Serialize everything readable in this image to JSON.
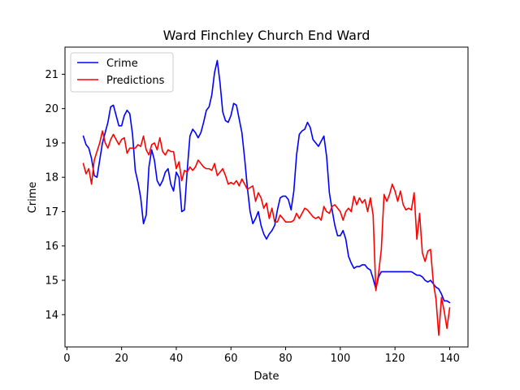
{
  "chart_data": {
    "type": "line",
    "title": "Ward Finchley Church End Ward",
    "xlabel": "Date",
    "ylabel": "Crime",
    "xlim": [
      -0.7,
      146.7
    ],
    "ylim": [
      13.06,
      21.79
    ],
    "xticks": [
      0,
      20,
      40,
      60,
      80,
      100,
      120,
      140
    ],
    "yticks": [
      14,
      15,
      16,
      17,
      18,
      19,
      20,
      21
    ],
    "grid": false,
    "legend": "top-left",
    "series": [
      {
        "name": "Crime",
        "color": "#0000ff",
        "points": [
          [
            6,
            19.2
          ],
          [
            7,
            18.95
          ],
          [
            8,
            18.85
          ],
          [
            9,
            18.55
          ],
          [
            10,
            18.05
          ],
          [
            11,
            18.0
          ],
          [
            12,
            18.5
          ],
          [
            13,
            19.0
          ],
          [
            14,
            19.3
          ],
          [
            15,
            19.6
          ],
          [
            16,
            20.05
          ],
          [
            17,
            20.1
          ],
          [
            18,
            19.8
          ],
          [
            19,
            19.5
          ],
          [
            20,
            19.5
          ],
          [
            21,
            19.8
          ],
          [
            22,
            19.95
          ],
          [
            23,
            19.85
          ],
          [
            24,
            19.25
          ],
          [
            25,
            18.2
          ],
          [
            26,
            17.85
          ],
          [
            27,
            17.4
          ],
          [
            28,
            16.65
          ],
          [
            29,
            16.9
          ],
          [
            30,
            18.3
          ],
          [
            31,
            18.8
          ],
          [
            32,
            18.5
          ],
          [
            33,
            17.9
          ],
          [
            34,
            17.75
          ],
          [
            35,
            17.9
          ],
          [
            36,
            18.15
          ],
          [
            37,
            18.25
          ],
          [
            38,
            17.8
          ],
          [
            39,
            17.6
          ],
          [
            40,
            18.15
          ],
          [
            41,
            18.0
          ],
          [
            42,
            17.0
          ],
          [
            43,
            17.05
          ],
          [
            44,
            18.2
          ],
          [
            45,
            19.2
          ],
          [
            46,
            19.4
          ],
          [
            47,
            19.3
          ],
          [
            48,
            19.15
          ],
          [
            49,
            19.3
          ],
          [
            50,
            19.6
          ],
          [
            51,
            19.95
          ],
          [
            52,
            20.05
          ],
          [
            53,
            20.4
          ],
          [
            54,
            21.05
          ],
          [
            55,
            21.4
          ],
          [
            56,
            20.75
          ],
          [
            57,
            19.9
          ],
          [
            58,
            19.65
          ],
          [
            59,
            19.6
          ],
          [
            60,
            19.8
          ],
          [
            61,
            20.15
          ],
          [
            62,
            20.1
          ],
          [
            63,
            19.7
          ],
          [
            64,
            19.3
          ],
          [
            65,
            18.55
          ],
          [
            66,
            17.7
          ],
          [
            67,
            17.0
          ],
          [
            68,
            16.65
          ],
          [
            69,
            16.8
          ],
          [
            70,
            17.0
          ],
          [
            71,
            16.6
          ],
          [
            72,
            16.35
          ],
          [
            73,
            16.2
          ],
          [
            74,
            16.35
          ],
          [
            75,
            16.45
          ],
          [
            76,
            16.6
          ],
          [
            77,
            17.05
          ],
          [
            78,
            17.4
          ],
          [
            79,
            17.45
          ],
          [
            80,
            17.45
          ],
          [
            81,
            17.35
          ],
          [
            82,
            17.05
          ],
          [
            83,
            17.6
          ],
          [
            84,
            18.65
          ],
          [
            85,
            19.25
          ],
          [
            86,
            19.35
          ],
          [
            87,
            19.4
          ],
          [
            88,
            19.6
          ],
          [
            89,
            19.45
          ],
          [
            90,
            19.1
          ],
          [
            91,
            19.0
          ],
          [
            92,
            18.9
          ],
          [
            93,
            19.05
          ],
          [
            94,
            19.2
          ],
          [
            95,
            18.6
          ],
          [
            96,
            17.55
          ],
          [
            97,
            17.05
          ],
          [
            98,
            16.6
          ],
          [
            99,
            16.3
          ],
          [
            100,
            16.3
          ],
          [
            101,
            16.45
          ],
          [
            102,
            16.2
          ],
          [
            103,
            15.7
          ],
          [
            104,
            15.5
          ],
          [
            105,
            15.35
          ],
          [
            106,
            15.4
          ],
          [
            107,
            15.4
          ],
          [
            108,
            15.45
          ],
          [
            109,
            15.45
          ],
          [
            110,
            15.35
          ],
          [
            111,
            15.3
          ],
          [
            112,
            15.05
          ],
          [
            113,
            14.75
          ],
          [
            114,
            15.1
          ],
          [
            115,
            15.25
          ],
          [
            116,
            15.25
          ],
          [
            117,
            15.25
          ],
          [
            118,
            15.25
          ],
          [
            119,
            15.25
          ],
          [
            120,
            15.25
          ],
          [
            121,
            15.25
          ],
          [
            122,
            15.25
          ],
          [
            123,
            15.25
          ],
          [
            124,
            15.25
          ],
          [
            125,
            15.25
          ],
          [
            126,
            15.25
          ],
          [
            127,
            15.2
          ],
          [
            128,
            15.15
          ],
          [
            129,
            15.15
          ],
          [
            130,
            15.1
          ],
          [
            131,
            15.0
          ],
          [
            132,
            14.95
          ],
          [
            133,
            15.0
          ],
          [
            134,
            14.9
          ],
          [
            135,
            14.8
          ],
          [
            136,
            14.75
          ],
          [
            137,
            14.6
          ],
          [
            138,
            14.4
          ],
          [
            139,
            14.4
          ],
          [
            140,
            14.35
          ]
        ]
      },
      {
        "name": "Predictions",
        "color": "#ff0000",
        "points": [
          [
            6,
            18.4
          ],
          [
            7,
            18.1
          ],
          [
            8,
            18.25
          ],
          [
            9,
            17.8
          ],
          [
            10,
            18.5
          ],
          [
            11,
            18.75
          ],
          [
            12,
            19.0
          ],
          [
            13,
            19.35
          ],
          [
            14,
            19.0
          ],
          [
            15,
            18.85
          ],
          [
            16,
            19.1
          ],
          [
            17,
            19.25
          ],
          [
            18,
            19.1
          ],
          [
            19,
            18.95
          ],
          [
            20,
            19.1
          ],
          [
            21,
            19.15
          ],
          [
            22,
            18.7
          ],
          [
            23,
            18.85
          ],
          [
            24,
            18.85
          ],
          [
            25,
            18.85
          ],
          [
            26,
            18.95
          ],
          [
            27,
            18.9
          ],
          [
            28,
            19.2
          ],
          [
            29,
            18.8
          ],
          [
            30,
            18.65
          ],
          [
            31,
            18.95
          ],
          [
            32,
            19.0
          ],
          [
            33,
            18.8
          ],
          [
            34,
            19.15
          ],
          [
            35,
            18.75
          ],
          [
            36,
            18.65
          ],
          [
            37,
            18.8
          ],
          [
            38,
            18.75
          ],
          [
            39,
            18.75
          ],
          [
            40,
            18.25
          ],
          [
            41,
            18.45
          ],
          [
            42,
            17.9
          ],
          [
            43,
            18.2
          ],
          [
            44,
            18.15
          ],
          [
            45,
            18.3
          ],
          [
            46,
            18.2
          ],
          [
            47,
            18.3
          ],
          [
            48,
            18.5
          ],
          [
            49,
            18.4
          ],
          [
            50,
            18.3
          ],
          [
            51,
            18.25
          ],
          [
            52,
            18.25
          ],
          [
            53,
            18.2
          ],
          [
            54,
            18.4
          ],
          [
            55,
            18.05
          ],
          [
            56,
            18.15
          ],
          [
            57,
            18.25
          ],
          [
            58,
            18.05
          ],
          [
            59,
            17.8
          ],
          [
            60,
            17.85
          ],
          [
            61,
            17.8
          ],
          [
            62,
            17.9
          ],
          [
            63,
            17.75
          ],
          [
            64,
            17.95
          ],
          [
            65,
            17.8
          ],
          [
            66,
            17.65
          ],
          [
            67,
            17.7
          ],
          [
            68,
            17.75
          ],
          [
            69,
            17.3
          ],
          [
            70,
            17.55
          ],
          [
            71,
            17.4
          ],
          [
            72,
            17.1
          ],
          [
            73,
            17.25
          ],
          [
            74,
            16.8
          ],
          [
            75,
            17.1
          ],
          [
            76,
            16.7
          ],
          [
            77,
            16.7
          ],
          [
            78,
            16.9
          ],
          [
            79,
            16.8
          ],
          [
            80,
            16.7
          ],
          [
            81,
            16.7
          ],
          [
            82,
            16.7
          ],
          [
            83,
            16.75
          ],
          [
            84,
            16.95
          ],
          [
            85,
            16.8
          ],
          [
            86,
            16.95
          ],
          [
            87,
            17.1
          ],
          [
            88,
            17.05
          ],
          [
            89,
            16.95
          ],
          [
            90,
            16.85
          ],
          [
            91,
            16.8
          ],
          [
            92,
            16.85
          ],
          [
            93,
            16.75
          ],
          [
            94,
            17.15
          ],
          [
            95,
            17.0
          ],
          [
            96,
            16.95
          ],
          [
            97,
            17.15
          ],
          [
            98,
            17.2
          ],
          [
            99,
            17.1
          ],
          [
            100,
            17.0
          ],
          [
            101,
            16.75
          ],
          [
            102,
            17.0
          ],
          [
            103,
            17.1
          ],
          [
            104,
            17.0
          ],
          [
            105,
            17.45
          ],
          [
            106,
            17.2
          ],
          [
            107,
            17.4
          ],
          [
            108,
            17.25
          ],
          [
            109,
            17.35
          ],
          [
            110,
            17.0
          ],
          [
            111,
            17.4
          ],
          [
            112,
            16.9
          ],
          [
            113,
            14.7
          ],
          [
            114,
            15.2
          ],
          [
            115,
            15.9
          ],
          [
            116,
            17.5
          ],
          [
            117,
            17.3
          ],
          [
            118,
            17.5
          ],
          [
            119,
            17.8
          ],
          [
            120,
            17.6
          ],
          [
            121,
            17.3
          ],
          [
            122,
            17.6
          ],
          [
            123,
            17.2
          ],
          [
            124,
            17.05
          ],
          [
            125,
            17.1
          ],
          [
            126,
            17.05
          ],
          [
            127,
            17.55
          ],
          [
            128,
            16.2
          ],
          [
            129,
            16.95
          ],
          [
            130,
            15.8
          ],
          [
            131,
            15.55
          ],
          [
            132,
            15.85
          ],
          [
            133,
            15.9
          ],
          [
            134,
            14.95
          ],
          [
            135,
            14.45
          ],
          [
            136,
            13.4
          ],
          [
            137,
            14.5
          ],
          [
            138,
            14.1
          ],
          [
            139,
            13.6
          ],
          [
            140,
            14.2
          ]
        ]
      }
    ]
  }
}
